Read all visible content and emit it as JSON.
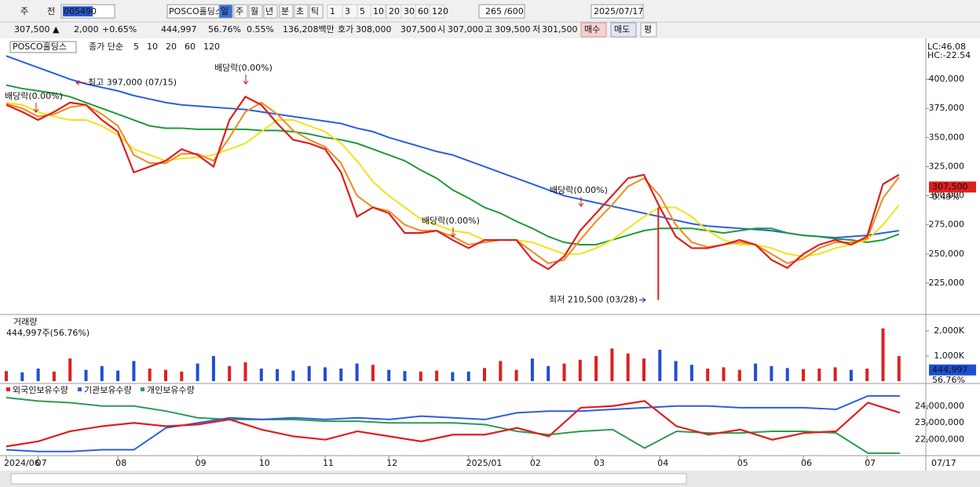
{
  "toolbar": {
    "mode1": "주",
    "mode2": "전",
    "code": "005490",
    "name": "POSCO홀딩스",
    "periods": [
      "일",
      "주",
      "월",
      "년",
      "분",
      "초",
      "틱"
    ],
    "intervals": [
      "1",
      "3",
      "5",
      "10",
      "20",
      "30",
      "60",
      "120"
    ],
    "count": "265",
    "count_max": "/600",
    "date": "2025/07/17"
  },
  "info_bar": {
    "price": "307,500",
    "change_sign": "▲",
    "change": "2,000",
    "change_pct": "+0.65%",
    "volume": "444,997",
    "vol_ratio": "56.76%",
    "turnover": "0.55%",
    "amount": "136,208백만",
    "ask_label": "호가",
    "ask": "308,000",
    "bid": "307,500",
    "open_label": "시",
    "open": "307,000",
    "high_label": "고",
    "high": "309,500",
    "low_label": "저",
    "low": "301,500",
    "buy": "매수",
    "sell": "매도",
    "avg": "평"
  },
  "chart_data": [
    {
      "type": "line",
      "name": "POSCO홀딩스",
      "legend_label": "종가 단순",
      "lc": "LC:46.08",
      "hc": "HC:-22.54",
      "categories": [
        "2024/06",
        null,
        "07",
        null,
        null,
        null,
        null,
        "08",
        null,
        null,
        null,
        null,
        "09",
        null,
        null,
        null,
        "10",
        null,
        null,
        null,
        "11",
        null,
        null,
        null,
        "12",
        null,
        null,
        null,
        null,
        "2025/01",
        null,
        null,
        null,
        "02",
        null,
        null,
        null,
        "03",
        null,
        null,
        null,
        "04",
        null,
        null,
        null,
        null,
        "05",
        null,
        null,
        null,
        "06",
        null,
        null,
        null,
        "07",
        null,
        null
      ],
      "end_label": "07/17",
      "series": [
        {
          "name": "5",
          "color": "#e01e1e",
          "values": [
            378000,
            372000,
            365000,
            372000,
            380000,
            378000,
            365000,
            355000,
            320000,
            325000,
            330000,
            340000,
            335000,
            325000,
            365000,
            385000,
            378000,
            362000,
            348000,
            345000,
            340000,
            320000,
            282000,
            290000,
            285000,
            268000,
            268000,
            270000,
            262000,
            255000,
            262000,
            262000,
            262000,
            245000,
            237000,
            248000,
            270000,
            285000,
            300000,
            315000,
            318000,
            290000,
            265000,
            255000,
            255000,
            258000,
            262000,
            258000,
            245000,
            238000,
            250000,
            258000,
            262000,
            258000,
            265000,
            310000,
            318000
          ]
        },
        {
          "name": "10",
          "color": "#f08a1c",
          "values": [
            379000,
            375000,
            368000,
            370000,
            376000,
            378000,
            370000,
            360000,
            335000,
            328000,
            328000,
            336000,
            336000,
            330000,
            350000,
            372000,
            380000,
            370000,
            356000,
            348000,
            342000,
            328000,
            300000,
            290000,
            287000,
            275000,
            270000,
            270000,
            265000,
            258000,
            260000,
            262000,
            262000,
            252000,
            242000,
            245000,
            262000,
            278000,
            292000,
            308000,
            315000,
            300000,
            275000,
            260000,
            256000,
            258000,
            260000,
            258000,
            250000,
            242000,
            246000,
            255000,
            260000,
            260000,
            263000,
            298000,
            316000
          ]
        },
        {
          "name": "20",
          "color": "#f2e21a",
          "values": [
            380000,
            378000,
            372000,
            368000,
            365000,
            365000,
            360000,
            352000,
            340000,
            335000,
            330000,
            332000,
            333000,
            335000,
            340000,
            345000,
            355000,
            365000,
            365000,
            360000,
            355000,
            345000,
            330000,
            312000,
            300000,
            290000,
            280000,
            275000,
            270000,
            268000,
            262000,
            262000,
            262000,
            260000,
            255000,
            250000,
            250000,
            255000,
            262000,
            272000,
            282000,
            290000,
            290000,
            282000,
            270000,
            262000,
            258000,
            258000,
            255000,
            250000,
            248000,
            250000,
            255000,
            258000,
            262000,
            275000,
            292000
          ]
        },
        {
          "name": "60",
          "color": "#1f9a3a",
          "values": [
            395000,
            392000,
            390000,
            388000,
            385000,
            380000,
            375000,
            370000,
            365000,
            360000,
            358000,
            358000,
            357000,
            357000,
            357000,
            357000,
            356000,
            356000,
            355000,
            353000,
            350000,
            348000,
            345000,
            340000,
            335000,
            330000,
            322000,
            315000,
            305000,
            298000,
            290000,
            285000,
            278000,
            272000,
            265000,
            260000,
            258000,
            258000,
            262000,
            266000,
            270000,
            272000,
            272000,
            272000,
            270000,
            268000,
            270000,
            272000,
            272000,
            268000,
            266000,
            265000,
            263000,
            262000,
            260000,
            262000,
            267000
          ]
        },
        {
          "name": "120",
          "color": "#2b5ee0",
          "values": [
            420000,
            415000,
            410000,
            405000,
            400000,
            396000,
            393000,
            390000,
            386000,
            383000,
            380000,
            378000,
            377000,
            376000,
            375000,
            374000,
            372000,
            370000,
            368000,
            366000,
            364000,
            362000,
            358000,
            355000,
            350000,
            346000,
            342000,
            338000,
            335000,
            330000,
            325000,
            320000,
            315000,
            310000,
            305000,
            300000,
            297000,
            294000,
            291000,
            288000,
            285000,
            282000,
            279000,
            276000,
            274000,
            273000,
            272000,
            271000,
            270000,
            268000,
            266000,
            265000,
            264000,
            265000,
            266000,
            268000,
            270000
          ]
        }
      ],
      "ylim": [
        198750,
        431000
      ],
      "yticks": [
        {
          "value": 225000,
          "label": "225,000"
        },
        {
          "value": 250000,
          "label": "250,000"
        },
        {
          "value": 275000,
          "label": "275,000"
        },
        {
          "value": 300000,
          "label": "300,000"
        },
        {
          "value": 325000,
          "label": "325,000"
        },
        {
          "value": 350000,
          "label": "350,000"
        },
        {
          "value": 375000,
          "label": "375,000"
        },
        {
          "value": 400000,
          "label": "400,000"
        }
      ],
      "last_price": {
        "value": 307500,
        "label": "307,500"
      },
      "last_change": "0.49%",
      "high": {
        "value": 397000,
        "label": "최고 397,000 (07/15)"
      },
      "low": {
        "value": 210500,
        "label": "최저 210,500 (03/28)"
      },
      "annotations": [
        "배당락(0.00%)",
        "배당락(0.00%)",
        "배당락(0.00%)",
        "배당락(0.00%)"
      ]
    },
    {
      "type": "bar",
      "title": "거래량",
      "subtitle": "444,997주(56.76%)",
      "up_color": "#e01e1e",
      "down_color": "#1f4fd0",
      "values": [
        400000,
        350000,
        500000,
        380000,
        900000,
        450000,
        600000,
        420000,
        800000,
        500000,
        450000,
        380000,
        700000,
        1000000,
        600000,
        750000,
        500000,
        480000,
        420000,
        600000,
        550000,
        500000,
        700000,
        650000,
        450000,
        400000,
        380000,
        420000,
        360000,
        380000,
        520000,
        800000,
        450000,
        900000,
        600000,
        700000,
        850000,
        1000000,
        1300000,
        1100000,
        900000,
        1250000,
        800000,
        650000,
        500000,
        550000,
        450000,
        700000,
        600000,
        520000,
        480000,
        500000,
        550000,
        450000,
        500000,
        2100000,
        1000000
      ],
      "ylim": [
        0,
        2530000
      ],
      "yticks": [
        {
          "value": 1000000,
          "label": "1,000K"
        },
        {
          "value": 2000000,
          "label": "2,000K"
        }
      ],
      "last": {
        "value": 444997,
        "label": "444,997"
      },
      "last_ratio": "56.76%"
    },
    {
      "type": "line",
      "ylim": [
        21100000,
        25200000
      ],
      "yticks": [
        {
          "value": 22000000,
          "label": "22,000,000"
        },
        {
          "value": 23000000,
          "label": "23,000,000"
        },
        {
          "value": 24000000,
          "label": "24,000,000"
        }
      ],
      "series": [
        {
          "name": "외국인보유수량",
          "color": "#e01e1e",
          "values": [
            21600000,
            21900000,
            22500000,
            22800000,
            23000000,
            22800000,
            22900000,
            23200000,
            22600000,
            22200000,
            22000000,
            22500000,
            22200000,
            21900000,
            22300000,
            22300000,
            22700000,
            22200000,
            23900000,
            24000000,
            24300000,
            22800000,
            22300000,
            22600000,
            22000000,
            22400000,
            22500000,
            24200000,
            23600000
          ]
        },
        {
          "name": "기관보유수량",
          "color": "#2b5ee0",
          "values": [
            21400000,
            21300000,
            21300000,
            21400000,
            21400000,
            22700000,
            23000000,
            23300000,
            23200000,
            23300000,
            23200000,
            23300000,
            23200000,
            23400000,
            23300000,
            23200000,
            23600000,
            23700000,
            23700000,
            23800000,
            23900000,
            24000000,
            24000000,
            23900000,
            23900000,
            23900000,
            23800000,
            24600000,
            24600000
          ]
        },
        {
          "name": "개인보유수량",
          "color": "#2e9a55",
          "values": [
            24500000,
            24300000,
            24200000,
            24000000,
            24000000,
            23700000,
            23300000,
            23200000,
            23200000,
            23200000,
            23100000,
            23100000,
            23000000,
            23000000,
            23000000,
            22900000,
            22500000,
            22300000,
            22500000,
            22600000,
            21500000,
            22500000,
            22400000,
            22400000,
            22500000,
            22500000,
            22400000,
            21200000,
            21200000
          ]
        }
      ]
    }
  ]
}
